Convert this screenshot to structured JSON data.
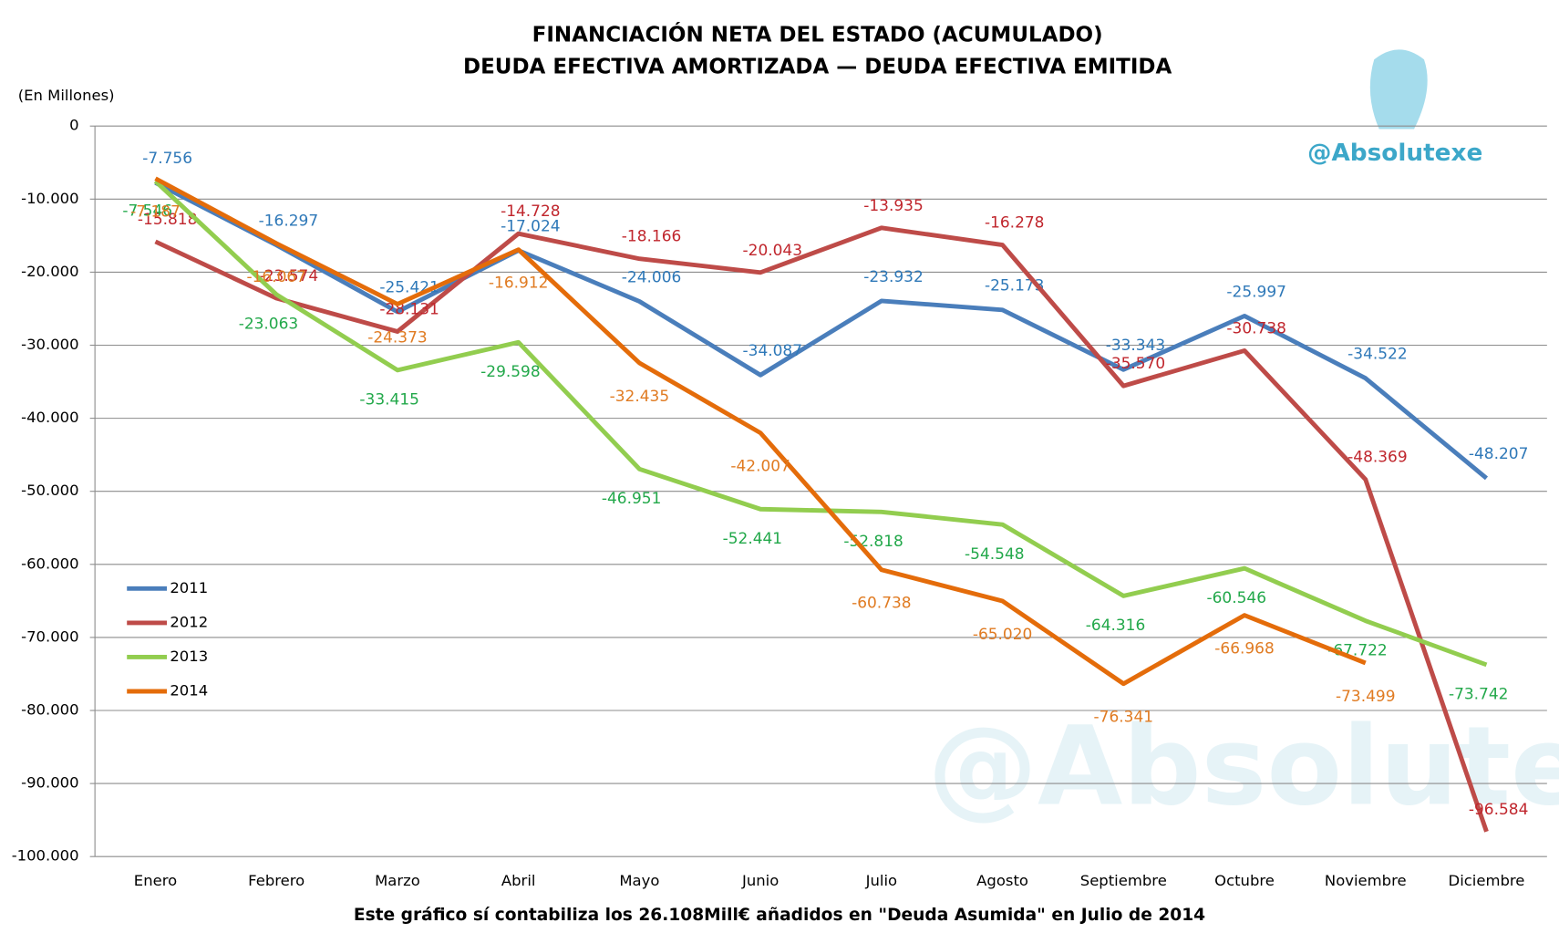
{
  "chart_data": {
    "type": "line",
    "title": "FINANCIACIÓN NETA DEL ESTADO (ACUMULADO)",
    "subtitle": "DEUDA EFECTIVA AMORTIZADA — DEUDA EFECTIVA EMITIDA",
    "y_label": "(En Millones)",
    "footnote": "Este gráfico sí contabiliza los 26.108Mill€ añadidos en \"Deuda Asumida\" en Julio de 2014",
    "watermark": "@Absolutexe",
    "categories": [
      "Enero",
      "Febrero",
      "Marzo",
      "Abril",
      "Mayo",
      "Junio",
      "Julio",
      "Agosto",
      "Septiembre",
      "Octubre",
      "Noviembre",
      "Diciembre"
    ],
    "series": [
      {
        "name": "2011",
        "color": "#4a7ebb",
        "label_color": "#2e78b8",
        "values": [
          -7756,
          -16297,
          -25421,
          -17024,
          -24006,
          -34087,
          -23932,
          -25173,
          -33343,
          -25997,
          -34522,
          -48207
        ],
        "value_labels": [
          "-7.756",
          "-16.297",
          "-25.421",
          "-17.024",
          "-24.006",
          "-34.087",
          "-23.932",
          "-25.173",
          "-33.343",
          "-25.997",
          "-34.522",
          "-48.207"
        ]
      },
      {
        "name": "2012",
        "color": "#be4b48",
        "label_color": "#c0262d",
        "values": [
          -15818,
          -23574,
          -28131,
          -14728,
          -18166,
          -20043,
          -13935,
          -16278,
          -35570,
          -30738,
          -48369,
          -96584
        ],
        "value_labels": [
          "-15.818",
          "-23.574",
          "-28.131",
          "-14.728",
          "-18.166",
          "-20.043",
          "-13.935",
          "-16.278",
          "-35.570",
          "-30.738",
          "-48.369",
          "-96.584"
        ]
      },
      {
        "name": "2013",
        "color": "#92cd4f",
        "label_color": "#22a84a",
        "values": [
          -7546,
          -23063,
          -33415,
          -29598,
          -46951,
          -52441,
          -52818,
          -54548,
          -64316,
          -60546,
          -67722,
          -73742
        ],
        "value_labels": [
          "-7.546",
          "-23.063",
          "-33.415",
          "-29.598",
          "-46.951",
          "-52.441",
          "-52.818",
          "-54.548",
          "-64.316",
          "-60.546",
          "-67.722",
          "-73.742"
        ]
      },
      {
        "name": "2014",
        "color": "#e46c0a",
        "label_color": "#e07b22",
        "values": [
          -7187,
          -16067,
          -24373,
          -16912,
          -32435,
          -42007,
          -60738,
          -65020,
          -76341,
          -66968,
          -73499,
          null
        ],
        "value_labels": [
          "-7.187",
          "-16.067",
          "-24.373",
          "-16.912",
          "-32.435",
          "-42.007",
          "-60.738",
          "-65.020",
          "-76.341",
          "-66.968",
          "-73.499",
          null
        ]
      }
    ],
    "ylim": [
      -100000,
      0
    ],
    "yticks": [
      0,
      {
        "value": -10000,
        "label": "-10.000"
      },
      {
        "value": -20000,
        "label": "-20.000"
      },
      {
        "value": -30000,
        "label": "-30.000"
      },
      {
        "value": -40000,
        "label": "-40.000"
      },
      {
        "value": -50000,
        "label": "-50.000"
      },
      {
        "value": -60000,
        "label": "-60.000"
      },
      {
        "value": -70000,
        "label": "-70.000"
      },
      {
        "value": -80000,
        "label": "-80.000"
      },
      {
        "value": -90000,
        "label": "-90.000"
      },
      {
        "value": -100000,
        "label": "-100.000"
      }
    ],
    "grid": true,
    "legend": "left"
  }
}
